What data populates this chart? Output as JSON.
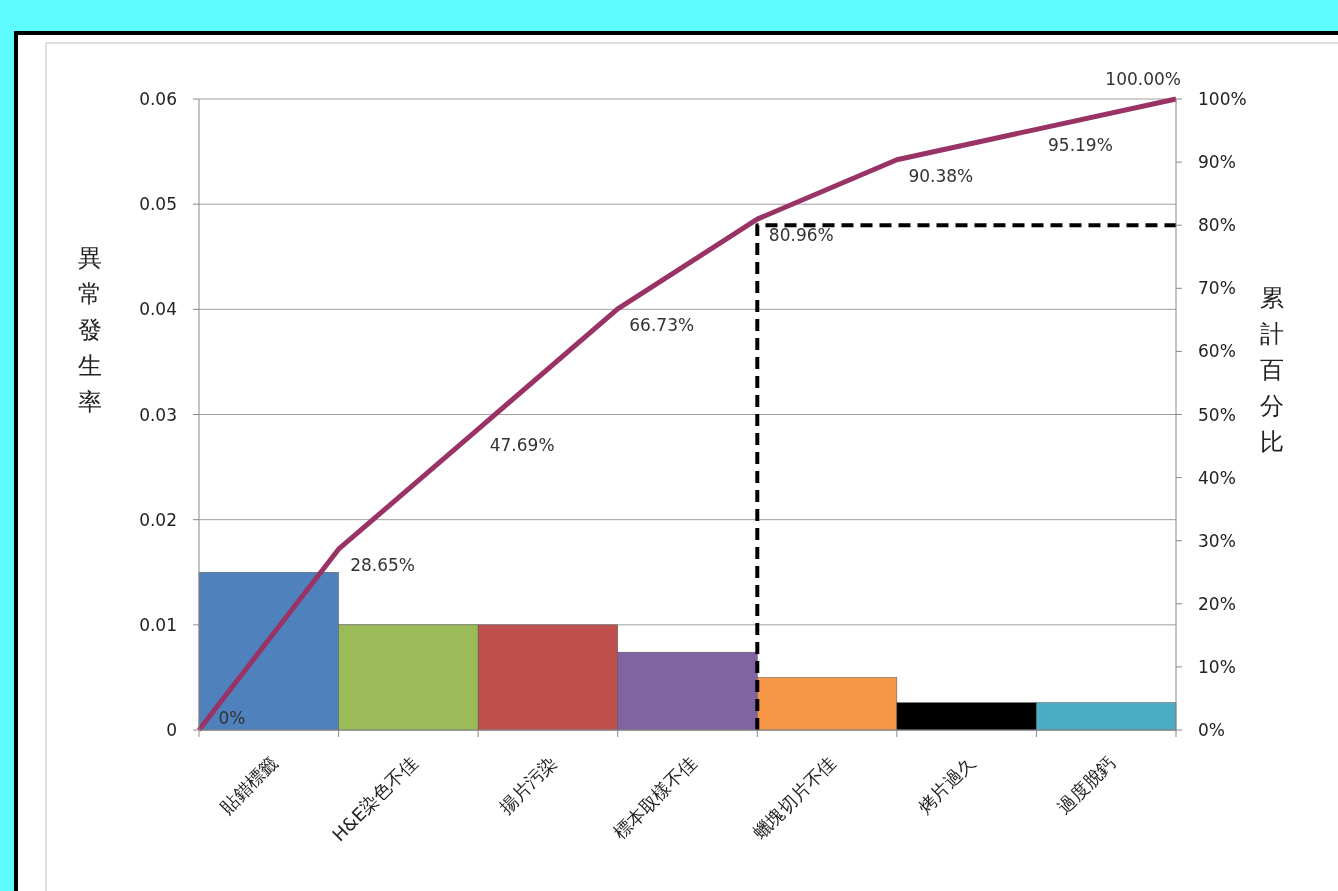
{
  "chart_data": {
    "type": "bar",
    "categories": [
      null,
      "貼錯標籤",
      null,
      "H&E染色不佳",
      null,
      "揚片污染",
      null,
      "標本取樣不佳",
      null,
      "蠟塊切片不佳",
      null,
      "烤片過久",
      null,
      "過度脫鈣",
      null
    ],
    "series": [
      {
        "colors": [
          null,
          "#4f81bd",
          null,
          "#9bbb59",
          null,
          "#c0504d",
          null,
          "#8064a2",
          null,
          "#f79646",
          null,
          "#000000",
          null,
          "#4bacc6",
          null
        ],
        "values": [
          null,
          0.015,
          null,
          0.01,
          null,
          0.01,
          null,
          0.0074,
          null,
          0.005,
          null,
          0.0026,
          null,
          0.0026,
          null
        ]
      },
      {
        "type": "line",
        "axis": "y2",
        "color": "#993366",
        "marker": "none",
        "line_style": "solid",
        "values": [
          0,
          null,
          28.65,
          null,
          47.69,
          null,
          66.73,
          null,
          80.96,
          null,
          90.38,
          null,
          95.19,
          null,
          100
        ],
        "value_labels": [
          "0%",
          null,
          "28.65%",
          null,
          "47.69%",
          null,
          "66.73%",
          null,
          "80.96%",
          null,
          "90.38%",
          null,
          "95.19%",
          null,
          "100.00%"
        ]
      },
      {
        "type": "step",
        "axis": "y2",
        "color": "#000000",
        "marker": "none",
        "line_style": "dashed",
        "values": [
          null,
          null,
          null,
          null,
          null,
          null,
          null,
          null,
          0,
          80,
          80,
          80,
          80,
          80,
          80
        ]
      }
    ],
    "ylabel": "異常發生率",
    "y2label": "累計百分比",
    "ylim": [
      0,
      0.06
    ],
    "yticks": [
      0,
      0.01,
      0.02,
      0.03,
      0.04,
      0.05,
      0.06
    ],
    "y2lim": [
      0,
      100
    ],
    "y2ticks": [
      {
        "value": 0,
        "label": "0%"
      },
      {
        "value": 10,
        "label": "10%"
      },
      {
        "value": 20,
        "label": "20%"
      },
      {
        "value": 30,
        "label": "30%"
      },
      {
        "value": 40,
        "label": "40%"
      },
      {
        "value": 50,
        "label": "50%"
      },
      {
        "value": 60,
        "label": "60%"
      },
      {
        "value": 70,
        "label": "70%"
      },
      {
        "value": 80,
        "label": "80%"
      },
      {
        "value": 90,
        "label": "90%"
      },
      {
        "value": 100,
        "label": "100%"
      }
    ],
    "grid": "y"
  }
}
